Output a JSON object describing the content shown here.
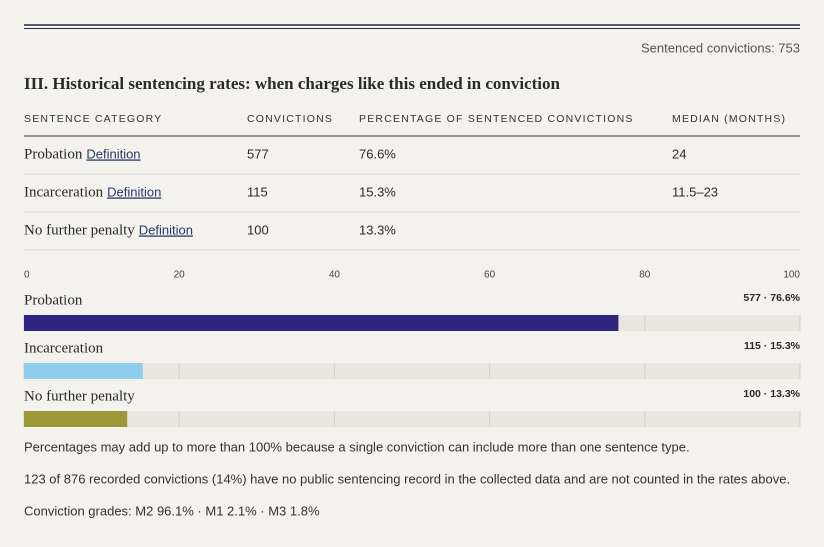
{
  "header": {
    "count_label": "Sentenced convictions: 753"
  },
  "title": "III. Historical sentencing rates: when charges like this ended in conviction",
  "table": {
    "columns": [
      "SENTENCE CATEGORY",
      "CONVICTIONS",
      "PERCENTAGE OF SENTENCED CONVICTIONS",
      "MEDIAN (MONTHS)"
    ],
    "rows": [
      {
        "category": "Probation",
        "link": "Definition",
        "convictions": 577,
        "percentage": "76.6%",
        "median": "24"
      },
      {
        "category": "Incarceration",
        "link": "Definition",
        "convictions": 115,
        "percentage": "15.3%",
        "median": "11.5–23"
      },
      {
        "category": "No further penalty",
        "link": "Definition",
        "convictions": 100,
        "percentage": "13.3%"
      }
    ]
  },
  "chart_data": {
    "type": "hbar",
    "categories": [
      "Probation",
      "Incarceration",
      "No further penalty"
    ],
    "values": [
      76.6,
      15.3,
      13.3
    ],
    "value_labels": [
      "577 · 76.6%",
      "115 · 15.3%",
      "100 · 13.3%"
    ],
    "colors": [
      "#2e2482",
      "#8ecdeb",
      "#9b9838"
    ],
    "xlim": [
      0,
      100
    ],
    "xticks": [
      0,
      20,
      40,
      60,
      80,
      100
    ],
    "grid": true
  },
  "notes": [
    "Percentages may add up to more than 100% because a single conviction can include more than one sentence type.",
    "123 of 876 recorded convictions (14%) have no public sentencing record in the collected data and are not counted in the rates above.",
    "Conviction grades: M2 96.1% · M1 2.1% · M3 1.8%"
  ]
}
